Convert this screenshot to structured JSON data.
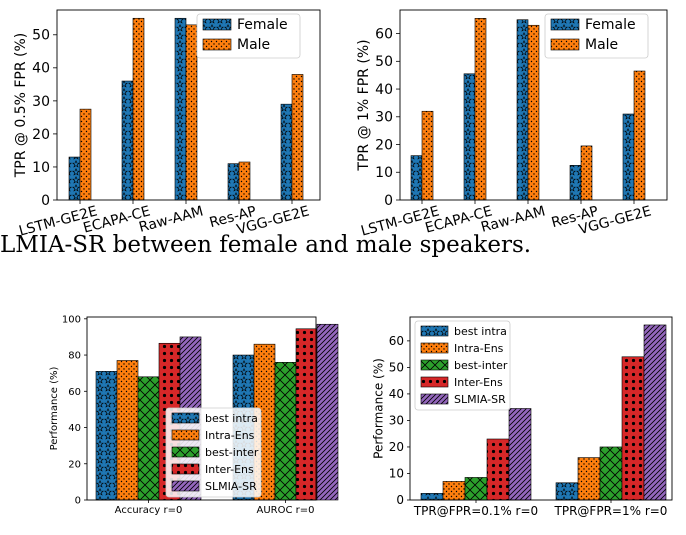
{
  "caption": "LMIA-SR between female and male speakers.",
  "colors": {
    "blue": "#1f77b4",
    "orange": "#ff7f0e",
    "green": "#2ca02c",
    "red": "#d62728",
    "purple": "#9467bd"
  },
  "chart_data": [
    {
      "type": "bar",
      "categories": [
        "LSTM-GE2E",
        "ECAPA-CE",
        "Raw-AAM",
        "Res-AP",
        "VGG-GE2E"
      ],
      "series": [
        {
          "name": "Female",
          "values": [
            13,
            36,
            55,
            11,
            29
          ],
          "color": "blue",
          "hatch": "stars"
        },
        {
          "name": "Male",
          "values": [
            27.5,
            55,
            53,
            11.5,
            38
          ],
          "color": "orange",
          "hatch": "dots"
        }
      ],
      "ylabel": "TPR @ 0.5% FPR (%)",
      "ylim": [
        0,
        57.5
      ],
      "yticks": [
        0,
        10,
        20,
        30,
        40,
        50
      ],
      "legend": "top-right",
      "grid": false
    },
    {
      "type": "bar",
      "categories": [
        "LSTM-GE2E",
        "ECAPA-CE",
        "Raw-AAM",
        "Res-AP",
        "VGG-GE2E"
      ],
      "series": [
        {
          "name": "Female",
          "values": [
            16,
            45.5,
            65,
            12.5,
            31
          ],
          "color": "blue",
          "hatch": "stars"
        },
        {
          "name": "Male",
          "values": [
            32,
            65.5,
            63,
            19.5,
            46.5
          ],
          "color": "orange",
          "hatch": "dots"
        }
      ],
      "ylabel": "TPR @ 1% FPR (%)",
      "ylim": [
        0,
        68.5
      ],
      "yticks": [
        0,
        10,
        20,
        30,
        40,
        50,
        60
      ],
      "legend": "top-right",
      "grid": false
    },
    {
      "type": "bar",
      "categories": [
        "Accuracy r=0",
        "AUROC r=0"
      ],
      "series": [
        {
          "name": "best intra",
          "values": [
            71,
            80
          ],
          "color": "blue",
          "hatch": "stars"
        },
        {
          "name": "Intra-Ens",
          "values": [
            77,
            86
          ],
          "color": "orange",
          "hatch": "dots"
        },
        {
          "name": "best-inter",
          "values": [
            68,
            76
          ],
          "color": "green",
          "hatch": "cross"
        },
        {
          "name": "Inter-Ens",
          "values": [
            86.5,
            94.5
          ],
          "color": "red",
          "hatch": "circles"
        },
        {
          "name": "SLMIA-SR",
          "values": [
            90,
            97
          ],
          "color": "purple",
          "hatch": "diag"
        }
      ],
      "ylabel": "Performance (%)",
      "ylim": [
        0,
        101
      ],
      "yticks": [
        0,
        20,
        40,
        60,
        80,
        100
      ],
      "legend": "lower-right",
      "grid": false
    },
    {
      "type": "bar",
      "categories": [
        "TPR@FPR=0.1% r=0",
        "TPR@FPR=1% r=0"
      ],
      "series": [
        {
          "name": "best intra",
          "values": [
            2.5,
            6.5
          ],
          "color": "blue",
          "hatch": "stars"
        },
        {
          "name": "Intra-Ens",
          "values": [
            7,
            16
          ],
          "color": "orange",
          "hatch": "dots"
        },
        {
          "name": "best-inter",
          "values": [
            8.5,
            20
          ],
          "color": "green",
          "hatch": "cross"
        },
        {
          "name": "Inter-Ens",
          "values": [
            23,
            54
          ],
          "color": "red",
          "hatch": "circles"
        },
        {
          "name": "SLMIA-SR",
          "values": [
            34.5,
            66
          ],
          "color": "purple",
          "hatch": "diag"
        }
      ],
      "ylabel": "Performance (%)",
      "ylim": [
        0,
        69
      ],
      "yticks": [
        0,
        10,
        20,
        30,
        40,
        50,
        60
      ],
      "legend": "top-left",
      "grid": false
    }
  ]
}
